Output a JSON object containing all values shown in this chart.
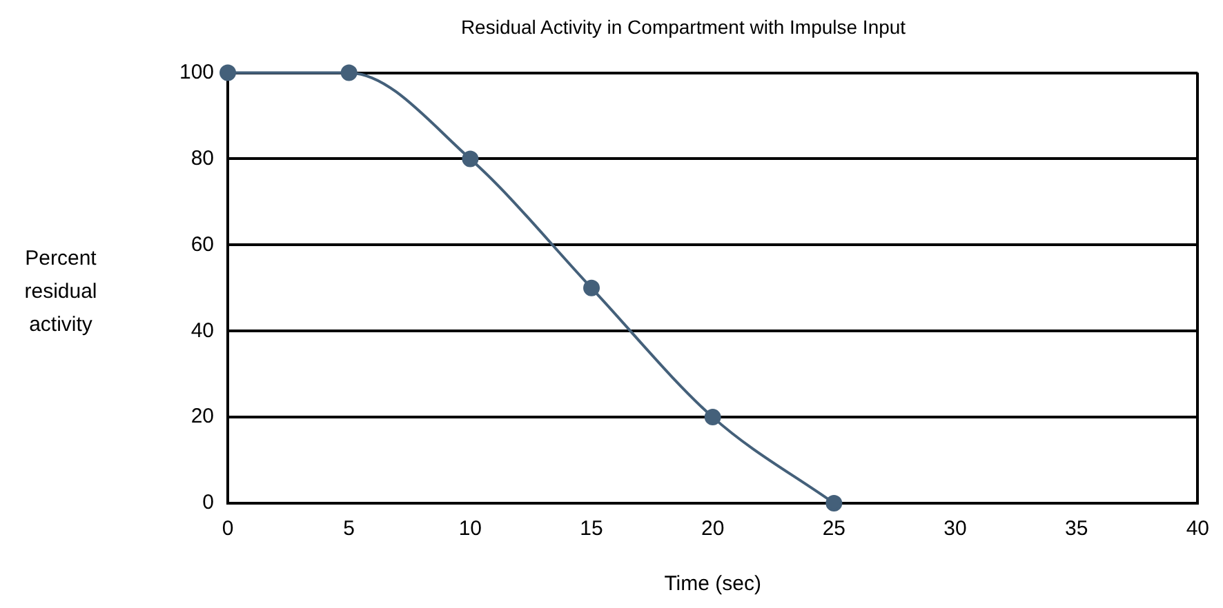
{
  "chart_data": {
    "type": "line",
    "title": "Residual Activity in Compartment with Impulse Input",
    "xlabel": "Time (sec)",
    "ylabel": "Percent residual activity",
    "x": [
      0,
      5,
      10,
      15,
      20,
      25
    ],
    "series": [
      {
        "color": "#44607a",
        "values": [
          100,
          100,
          80,
          50,
          20,
          0
        ]
      }
    ],
    "xlim": [
      0,
      40
    ],
    "xticks": [
      0,
      5,
      10,
      15,
      20,
      25,
      30,
      35,
      40
    ],
    "ylim": [
      0,
      100
    ],
    "yticks": [
      0,
      20,
      40,
      60,
      80,
      100
    ],
    "grid": "y",
    "legend": false,
    "marker": "circle",
    "line_style": "solid"
  }
}
